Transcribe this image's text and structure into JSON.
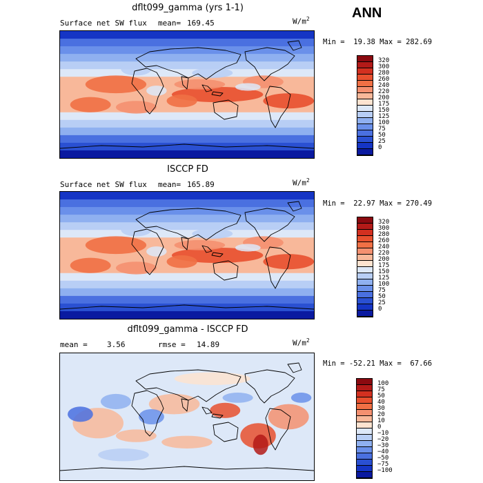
{
  "season": "ANN",
  "panels": [
    {
      "title": "dflt099_gamma (yrs 1-1)",
      "variable": "Surface net SW flux",
      "stat_left_label": "mean=",
      "stat_left_value": "169.45",
      "stat_right_label": "",
      "stat_right_value": "",
      "units": "W/m",
      "units_exp": "2",
      "minmax": "Min =  19.38 Max = 282.69",
      "kind": "field",
      "colorbar": {
        "labels": [
          "320",
          "300",
          "280",
          "260",
          "240",
          "220",
          "200",
          "175",
          "150",
          "125",
          "100",
          "75",
          "50",
          "25",
          "0"
        ],
        "colors": [
          "#8b0a10",
          "#b31a18",
          "#d33020",
          "#e8502f",
          "#f07045",
          "#f49070",
          "#f8b89a",
          "#fde3d0",
          "#dde8f8",
          "#b8cef5",
          "#8fb0f0",
          "#6a90ea",
          "#4a70e0",
          "#2a50d2",
          "#1535c5",
          "#0a1aa0"
        ]
      }
    },
    {
      "title": "ISCCP FD",
      "variable": "Surface net SW flux",
      "stat_left_label": "mean=",
      "stat_left_value": "165.89",
      "stat_right_label": "",
      "stat_right_value": "",
      "units": "W/m",
      "units_exp": "2",
      "minmax": "Min =  22.97 Max = 270.49",
      "kind": "field",
      "colorbar": {
        "labels": [
          "320",
          "300",
          "280",
          "260",
          "240",
          "220",
          "200",
          "175",
          "150",
          "125",
          "100",
          "75",
          "50",
          "25",
          "0"
        ],
        "colors": [
          "#8b0a10",
          "#b31a18",
          "#d33020",
          "#e8502f",
          "#f07045",
          "#f49070",
          "#f8b89a",
          "#fde3d0",
          "#dde8f8",
          "#b8cef5",
          "#8fb0f0",
          "#6a90ea",
          "#4a70e0",
          "#2a50d2",
          "#1535c5",
          "#0a1aa0"
        ]
      }
    },
    {
      "title": "dflt099_gamma - ISCCP FD",
      "variable": "",
      "stat_left_label": "mean =",
      "stat_left_value": "3.56",
      "stat_right_label": "rmse =",
      "stat_right_value": "14.89",
      "units": "W/m",
      "units_exp": "2",
      "minmax": "Min = -52.21 Max =  67.66",
      "kind": "diff",
      "colorbar": {
        "labels": [
          "100",
          "75",
          "50",
          "40",
          "30",
          "20",
          "10",
          "0",
          "−10",
          "−20",
          "−30",
          "−40",
          "−50",
          "−75",
          "−100"
        ],
        "colors": [
          "#8b0a10",
          "#b31a18",
          "#d33020",
          "#e8502f",
          "#f07045",
          "#f49070",
          "#f8b89a",
          "#fde3d0",
          "#dde8f8",
          "#b8cef5",
          "#8fb0f0",
          "#6a90ea",
          "#4a70e0",
          "#2a50d2",
          "#1535c5",
          "#0a1aa0"
        ]
      }
    }
  ]
}
